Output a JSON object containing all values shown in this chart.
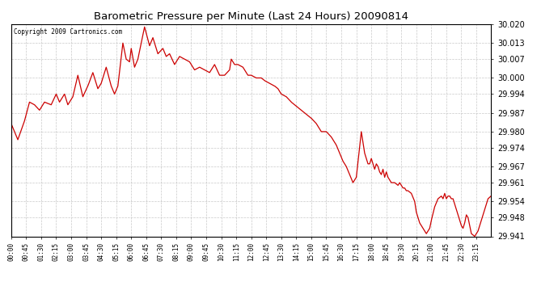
{
  "title": "Barometric Pressure per Minute (Last 24 Hours) 20090814",
  "copyright": "Copyright 2009 Cartronics.com",
  "line_color": "#cc0000",
  "background_color": "#ffffff",
  "grid_color": "#bbbbbb",
  "ylim": [
    29.941,
    30.02
  ],
  "yticks": [
    29.941,
    29.948,
    29.954,
    29.961,
    29.967,
    29.974,
    29.98,
    29.987,
    29.994,
    30.0,
    30.007,
    30.013,
    30.02
  ],
  "xtick_labels": [
    "00:00",
    "00:45",
    "01:30",
    "02:15",
    "03:00",
    "03:45",
    "04:30",
    "05:15",
    "06:00",
    "06:45",
    "07:30",
    "08:15",
    "09:00",
    "09:45",
    "10:30",
    "11:15",
    "12:00",
    "12:45",
    "13:30",
    "14:15",
    "15:00",
    "15:45",
    "16:30",
    "17:15",
    "18:00",
    "18:45",
    "19:30",
    "20:15",
    "21:00",
    "21:45",
    "22:30",
    "23:15"
  ],
  "control_points": [
    [
      0,
      29.983
    ],
    [
      20,
      29.977
    ],
    [
      40,
      29.984
    ],
    [
      55,
      29.991
    ],
    [
      70,
      29.99
    ],
    [
      85,
      29.988
    ],
    [
      100,
      29.991
    ],
    [
      120,
      29.99
    ],
    [
      135,
      29.994
    ],
    [
      145,
      29.991
    ],
    [
      160,
      29.994
    ],
    [
      170,
      29.99
    ],
    [
      185,
      29.993
    ],
    [
      200,
      30.001
    ],
    [
      215,
      29.993
    ],
    [
      230,
      29.997
    ],
    [
      245,
      30.002
    ],
    [
      260,
      29.996
    ],
    [
      270,
      29.998
    ],
    [
      285,
      30.004
    ],
    [
      300,
      29.997
    ],
    [
      310,
      29.994
    ],
    [
      320,
      29.997
    ],
    [
      335,
      30.013
    ],
    [
      345,
      30.007
    ],
    [
      355,
      30.006
    ],
    [
      360,
      30.011
    ],
    [
      370,
      30.004
    ],
    [
      380,
      30.007
    ],
    [
      400,
      30.019
    ],
    [
      415,
      30.012
    ],
    [
      425,
      30.015
    ],
    [
      440,
      30.009
    ],
    [
      455,
      30.011
    ],
    [
      465,
      30.008
    ],
    [
      475,
      30.009
    ],
    [
      490,
      30.005
    ],
    [
      505,
      30.008
    ],
    [
      520,
      30.007
    ],
    [
      535,
      30.006
    ],
    [
      550,
      30.003
    ],
    [
      565,
      30.004
    ],
    [
      580,
      30.003
    ],
    [
      595,
      30.002
    ],
    [
      610,
      30.005
    ],
    [
      625,
      30.001
    ],
    [
      640,
      30.001
    ],
    [
      655,
      30.003
    ],
    [
      660,
      30.007
    ],
    [
      670,
      30.005
    ],
    [
      680,
      30.005
    ],
    [
      695,
      30.004
    ],
    [
      710,
      30.001
    ],
    [
      720,
      30.001
    ],
    [
      735,
      30.0
    ],
    [
      750,
      30.0
    ],
    [
      760,
      29.999
    ],
    [
      775,
      29.998
    ],
    [
      790,
      29.997
    ],
    [
      800,
      29.996
    ],
    [
      810,
      29.994
    ],
    [
      825,
      29.993
    ],
    [
      840,
      29.991
    ],
    [
      860,
      29.989
    ],
    [
      880,
      29.987
    ],
    [
      900,
      29.985
    ],
    [
      915,
      29.983
    ],
    [
      930,
      29.98
    ],
    [
      945,
      29.98
    ],
    [
      960,
      29.978
    ],
    [
      975,
      29.975
    ],
    [
      985,
      29.972
    ],
    [
      995,
      29.969
    ],
    [
      1005,
      29.967
    ],
    [
      1015,
      29.964
    ],
    [
      1025,
      29.961
    ],
    [
      1035,
      29.963
    ],
    [
      1050,
      29.98
    ],
    [
      1060,
      29.972
    ],
    [
      1070,
      29.968
    ],
    [
      1075,
      29.968
    ],
    [
      1080,
      29.97
    ],
    [
      1085,
      29.968
    ],
    [
      1090,
      29.966
    ],
    [
      1095,
      29.968
    ],
    [
      1100,
      29.967
    ],
    [
      1105,
      29.965
    ],
    [
      1110,
      29.964
    ],
    [
      1115,
      29.966
    ],
    [
      1120,
      29.963
    ],
    [
      1125,
      29.965
    ],
    [
      1130,
      29.963
    ],
    [
      1140,
      29.961
    ],
    [
      1150,
      29.961
    ],
    [
      1160,
      29.96
    ],
    [
      1165,
      29.961
    ],
    [
      1170,
      29.96
    ],
    [
      1175,
      29.959
    ],
    [
      1180,
      29.959
    ],
    [
      1185,
      29.958
    ],
    [
      1190,
      29.958
    ],
    [
      1200,
      29.957
    ],
    [
      1210,
      29.954
    ],
    [
      1215,
      29.95
    ],
    [
      1225,
      29.946
    ],
    [
      1235,
      29.944
    ],
    [
      1245,
      29.942
    ],
    [
      1255,
      29.944
    ],
    [
      1260,
      29.947
    ],
    [
      1270,
      29.952
    ],
    [
      1280,
      29.955
    ],
    [
      1290,
      29.956
    ],
    [
      1295,
      29.955
    ],
    [
      1300,
      29.957
    ],
    [
      1305,
      29.955
    ],
    [
      1310,
      29.956
    ],
    [
      1315,
      29.956
    ],
    [
      1320,
      29.955
    ],
    [
      1325,
      29.955
    ],
    [
      1330,
      29.953
    ],
    [
      1335,
      29.951
    ],
    [
      1340,
      29.949
    ],
    [
      1345,
      29.947
    ],
    [
      1350,
      29.945
    ],
    [
      1355,
      29.944
    ],
    [
      1360,
      29.946
    ],
    [
      1365,
      29.949
    ],
    [
      1370,
      29.948
    ],
    [
      1375,
      29.945
    ],
    [
      1380,
      29.942
    ],
    [
      1390,
      29.941
    ],
    [
      1400,
      29.943
    ],
    [
      1410,
      29.947
    ],
    [
      1420,
      29.951
    ],
    [
      1430,
      29.955
    ],
    [
      1439,
      29.956
    ]
  ]
}
